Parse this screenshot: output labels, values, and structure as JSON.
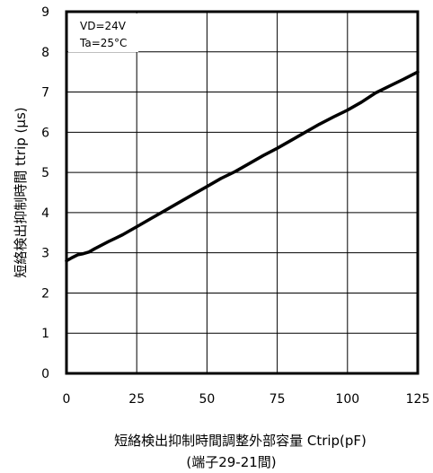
{
  "chart_data": {
    "type": "line",
    "title": "",
    "xlabel": "短絡検出抑制時間調整外部容量 Ctrip(pF)",
    "xlabel_sub": "(端子29-21間)",
    "ylabel": "短絡検出抑制時間 ttrip (μs)",
    "xlim": [
      0,
      125
    ],
    "ylim": [
      0,
      9
    ],
    "x_ticks": [
      "0",
      "25",
      "50",
      "75",
      "100",
      "125"
    ],
    "y_ticks": [
      "0",
      "1",
      "2",
      "3",
      "4",
      "5",
      "6",
      "7",
      "8",
      "9"
    ],
    "grid": true,
    "annotations": [
      "VD=24V",
      "Ta=25°C"
    ],
    "series": [
      {
        "name": "",
        "color": "#000000",
        "x": [
          0,
          2,
          4,
          6,
          8,
          10,
          15,
          20,
          25,
          30,
          35,
          40,
          45,
          50,
          55,
          60,
          65,
          70,
          75,
          80,
          85,
          90,
          95,
          100,
          105,
          110,
          115,
          120,
          125
        ],
        "y": [
          2.8,
          2.88,
          2.95,
          2.98,
          3.02,
          3.1,
          3.28,
          3.45,
          3.65,
          3.85,
          4.05,
          4.25,
          4.45,
          4.65,
          4.85,
          5.02,
          5.22,
          5.42,
          5.6,
          5.8,
          6.0,
          6.2,
          6.38,
          6.55,
          6.75,
          6.98,
          7.15,
          7.32,
          7.5
        ]
      }
    ]
  }
}
